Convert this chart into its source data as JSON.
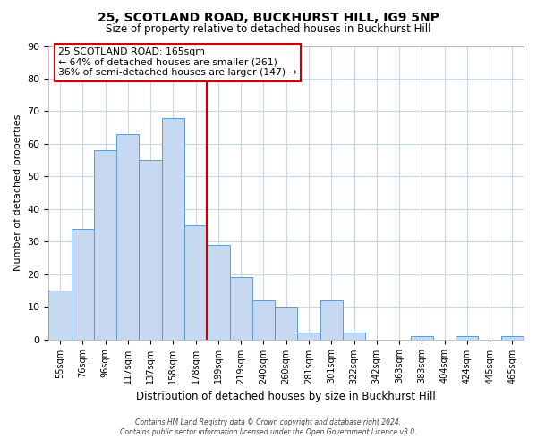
{
  "title": "25, SCOTLAND ROAD, BUCKHURST HILL, IG9 5NP",
  "subtitle": "Size of property relative to detached houses in Buckhurst Hill",
  "xlabel": "Distribution of detached houses by size in Buckhurst Hill",
  "ylabel": "Number of detached properties",
  "bar_labels": [
    "55sqm",
    "76sqm",
    "96sqm",
    "117sqm",
    "137sqm",
    "158sqm",
    "178sqm",
    "199sqm",
    "219sqm",
    "240sqm",
    "260sqm",
    "281sqm",
    "301sqm",
    "322sqm",
    "342sqm",
    "363sqm",
    "383sqm",
    "404sqm",
    "424sqm",
    "445sqm",
    "465sqm"
  ],
  "bar_values": [
    15,
    34,
    58,
    63,
    55,
    68,
    35,
    29,
    19,
    12,
    10,
    2,
    12,
    2,
    0,
    0,
    1,
    0,
    1,
    0,
    1
  ],
  "bar_color": "#c6d9f0",
  "bar_edge_color": "#5b9bd5",
  "reference_line_x": 6.5,
  "reference_line_color": "#cc0000",
  "ylim": [
    0,
    90
  ],
  "yticks": [
    0,
    10,
    20,
    30,
    40,
    50,
    60,
    70,
    80,
    90
  ],
  "annotation_title": "25 SCOTLAND ROAD: 165sqm",
  "annotation_line1": "← 64% of detached houses are smaller (261)",
  "annotation_line2": "36% of semi-detached houses are larger (147) →",
  "annotation_box_color": "#ffffff",
  "annotation_box_edge_color": "#cc0000",
  "footer_line1": "Contains HM Land Registry data © Crown copyright and database right 2024.",
  "footer_line2": "Contains public sector information licensed under the Open Government Licence v3.0.",
  "background_color": "#ffffff",
  "grid_color": "#c8d8ec"
}
